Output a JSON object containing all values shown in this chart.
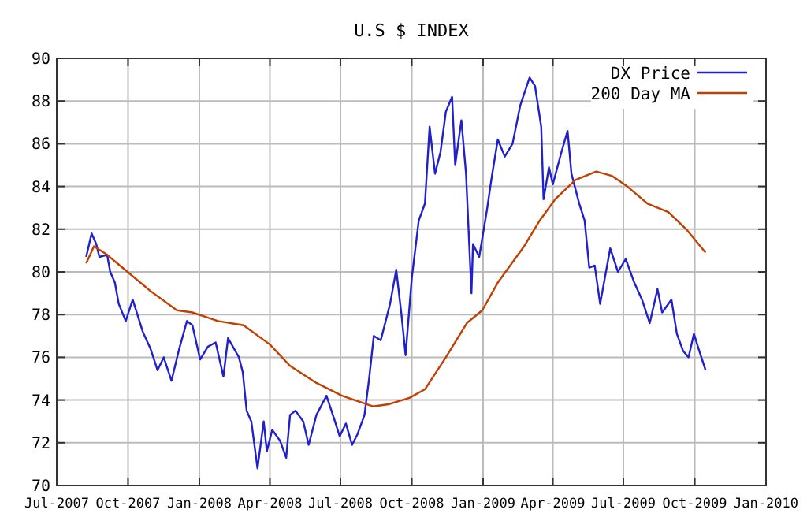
{
  "chart_data": {
    "type": "line",
    "title": "U.S $ INDEX",
    "legend": "top right",
    "grid": true,
    "xlim": [
      "2007-07-01",
      "2010-01-01"
    ],
    "ylim": [
      70,
      90
    ],
    "xticks": [
      {
        "value": "2007-07-01",
        "label": "Jul-2007"
      },
      {
        "value": "2007-10-01",
        "label": "Oct-2007"
      },
      {
        "value": "2008-01-01",
        "label": "Jan-2008"
      },
      {
        "value": "2008-04-01",
        "label": "Apr-2008"
      },
      {
        "value": "2008-07-01",
        "label": "Jul-2008"
      },
      {
        "value": "2008-10-01",
        "label": "Oct-2008"
      },
      {
        "value": "2009-01-01",
        "label": "Jan-2009"
      },
      {
        "value": "2009-04-01",
        "label": "Apr-2009"
      },
      {
        "value": "2009-07-01",
        "label": "Jul-2009"
      },
      {
        "value": "2009-10-01",
        "label": "Oct-2009"
      },
      {
        "value": "2010-01-01",
        "label": "Jan-2010"
      }
    ],
    "yticks": [
      70,
      72,
      74,
      76,
      78,
      80,
      82,
      84,
      86,
      88,
      90
    ],
    "series": [
      {
        "name": "DX Price",
        "color": "#2020cc",
        "x": [
          "2007-08-08",
          "2007-08-15",
          "2007-08-21",
          "2007-08-25",
          "2007-09-04",
          "2007-09-08",
          "2007-09-14",
          "2007-09-19",
          "2007-09-28",
          "2007-10-07",
          "2007-10-20",
          "2007-10-30",
          "2007-11-08",
          "2007-11-16",
          "2007-11-26",
          "2007-12-06",
          "2007-12-16",
          "2007-12-23",
          "2008-01-02",
          "2008-01-12",
          "2008-01-22",
          "2008-02-01",
          "2008-02-07",
          "2008-02-21",
          "2008-02-26",
          "2008-03-02",
          "2008-03-08",
          "2008-03-16",
          "2008-03-24",
          "2008-03-28",
          "2008-04-04",
          "2008-04-14",
          "2008-04-22",
          "2008-04-27",
          "2008-05-04",
          "2008-05-14",
          "2008-05-21",
          "2008-05-31",
          "2008-06-13",
          "2008-06-23",
          "2008-06-30",
          "2008-07-08",
          "2008-07-16",
          "2008-07-23",
          "2008-08-01",
          "2008-08-07",
          "2008-08-13",
          "2008-08-22",
          "2008-09-03",
          "2008-09-11",
          "2008-09-18",
          "2008-09-23",
          "2008-10-01",
          "2008-10-10",
          "2008-10-18",
          "2008-10-24",
          "2008-10-31",
          "2008-11-07",
          "2008-11-14",
          "2008-11-22",
          "2008-11-26",
          "2008-12-04",
          "2008-12-10",
          "2008-12-17",
          "2008-12-19",
          "2008-12-27",
          "2009-01-06",
          "2009-01-12",
          "2009-01-20",
          "2009-01-29",
          "2009-02-08",
          "2009-02-18",
          "2009-03-02",
          "2009-03-09",
          "2009-03-17",
          "2009-03-20",
          "2009-03-27",
          "2009-04-01",
          "2009-04-12",
          "2009-04-20",
          "2009-04-25",
          "2009-05-05",
          "2009-05-12",
          "2009-05-18",
          "2009-05-25",
          "2009-06-01",
          "2009-06-14",
          "2009-06-24",
          "2009-07-04",
          "2009-07-15",
          "2009-07-25",
          "2009-08-04",
          "2009-08-14",
          "2009-08-20",
          "2009-09-01",
          "2009-09-08",
          "2009-09-16",
          "2009-09-23",
          "2009-09-30",
          "2009-10-06",
          "2009-10-15"
        ],
        "values": [
          80.7,
          81.8,
          81.3,
          80.7,
          80.8,
          80.0,
          79.5,
          78.5,
          77.7,
          78.7,
          77.2,
          76.4,
          75.4,
          76.0,
          74.9,
          76.4,
          77.7,
          77.5,
          75.9,
          76.5,
          76.7,
          75.1,
          76.9,
          76.0,
          75.3,
          73.5,
          73.0,
          70.8,
          73.0,
          71.6,
          72.6,
          72.1,
          71.3,
          73.3,
          73.5,
          73.0,
          71.9,
          73.3,
          74.2,
          73.1,
          72.3,
          72.9,
          71.9,
          72.4,
          73.3,
          75.0,
          77.0,
          76.8,
          78.5,
          80.1,
          77.9,
          76.1,
          79.7,
          82.4,
          83.2,
          86.8,
          84.6,
          85.6,
          87.5,
          88.2,
          85.0,
          87.1,
          84.6,
          79.0,
          81.3,
          80.7,
          82.9,
          84.4,
          86.2,
          85.4,
          86.0,
          87.8,
          89.1,
          88.7,
          86.8,
          83.4,
          84.9,
          84.1,
          85.6,
          86.6,
          84.6,
          83.2,
          82.4,
          80.2,
          80.3,
          78.5,
          81.1,
          80.0,
          80.6,
          79.5,
          78.7,
          77.6,
          79.2,
          78.1,
          78.7,
          77.1,
          76.3,
          76.0,
          77.1,
          76.4,
          75.4
        ]
      },
      {
        "name": "200 Day MA",
        "color": "#c04000",
        "x": [
          "2007-08-08",
          "2007-08-18",
          "2007-09-04",
          "2007-09-27",
          "2007-10-30",
          "2007-12-03",
          "2007-12-23",
          "2008-01-25",
          "2008-02-27",
          "2008-04-01",
          "2008-04-27",
          "2008-05-31",
          "2008-07-03",
          "2008-08-12",
          "2008-09-01",
          "2008-09-28",
          "2008-10-18",
          "2008-11-14",
          "2008-12-11",
          "2008-12-31",
          "2009-01-20",
          "2009-02-23",
          "2009-03-15",
          "2009-04-04",
          "2009-04-30",
          "2009-05-27",
          "2009-06-16",
          "2009-07-06",
          "2009-08-01",
          "2009-08-28",
          "2009-09-20",
          "2009-10-15"
        ],
        "values": [
          80.4,
          81.2,
          80.8,
          80.1,
          79.1,
          78.2,
          78.1,
          77.7,
          77.5,
          76.6,
          75.6,
          74.8,
          74.2,
          73.7,
          73.8,
          74.1,
          74.5,
          76.0,
          77.6,
          78.2,
          79.5,
          81.2,
          82.4,
          83.4,
          84.3,
          84.7,
          84.5,
          84.0,
          83.2,
          82.8,
          82.0,
          80.9
        ]
      }
    ]
  }
}
